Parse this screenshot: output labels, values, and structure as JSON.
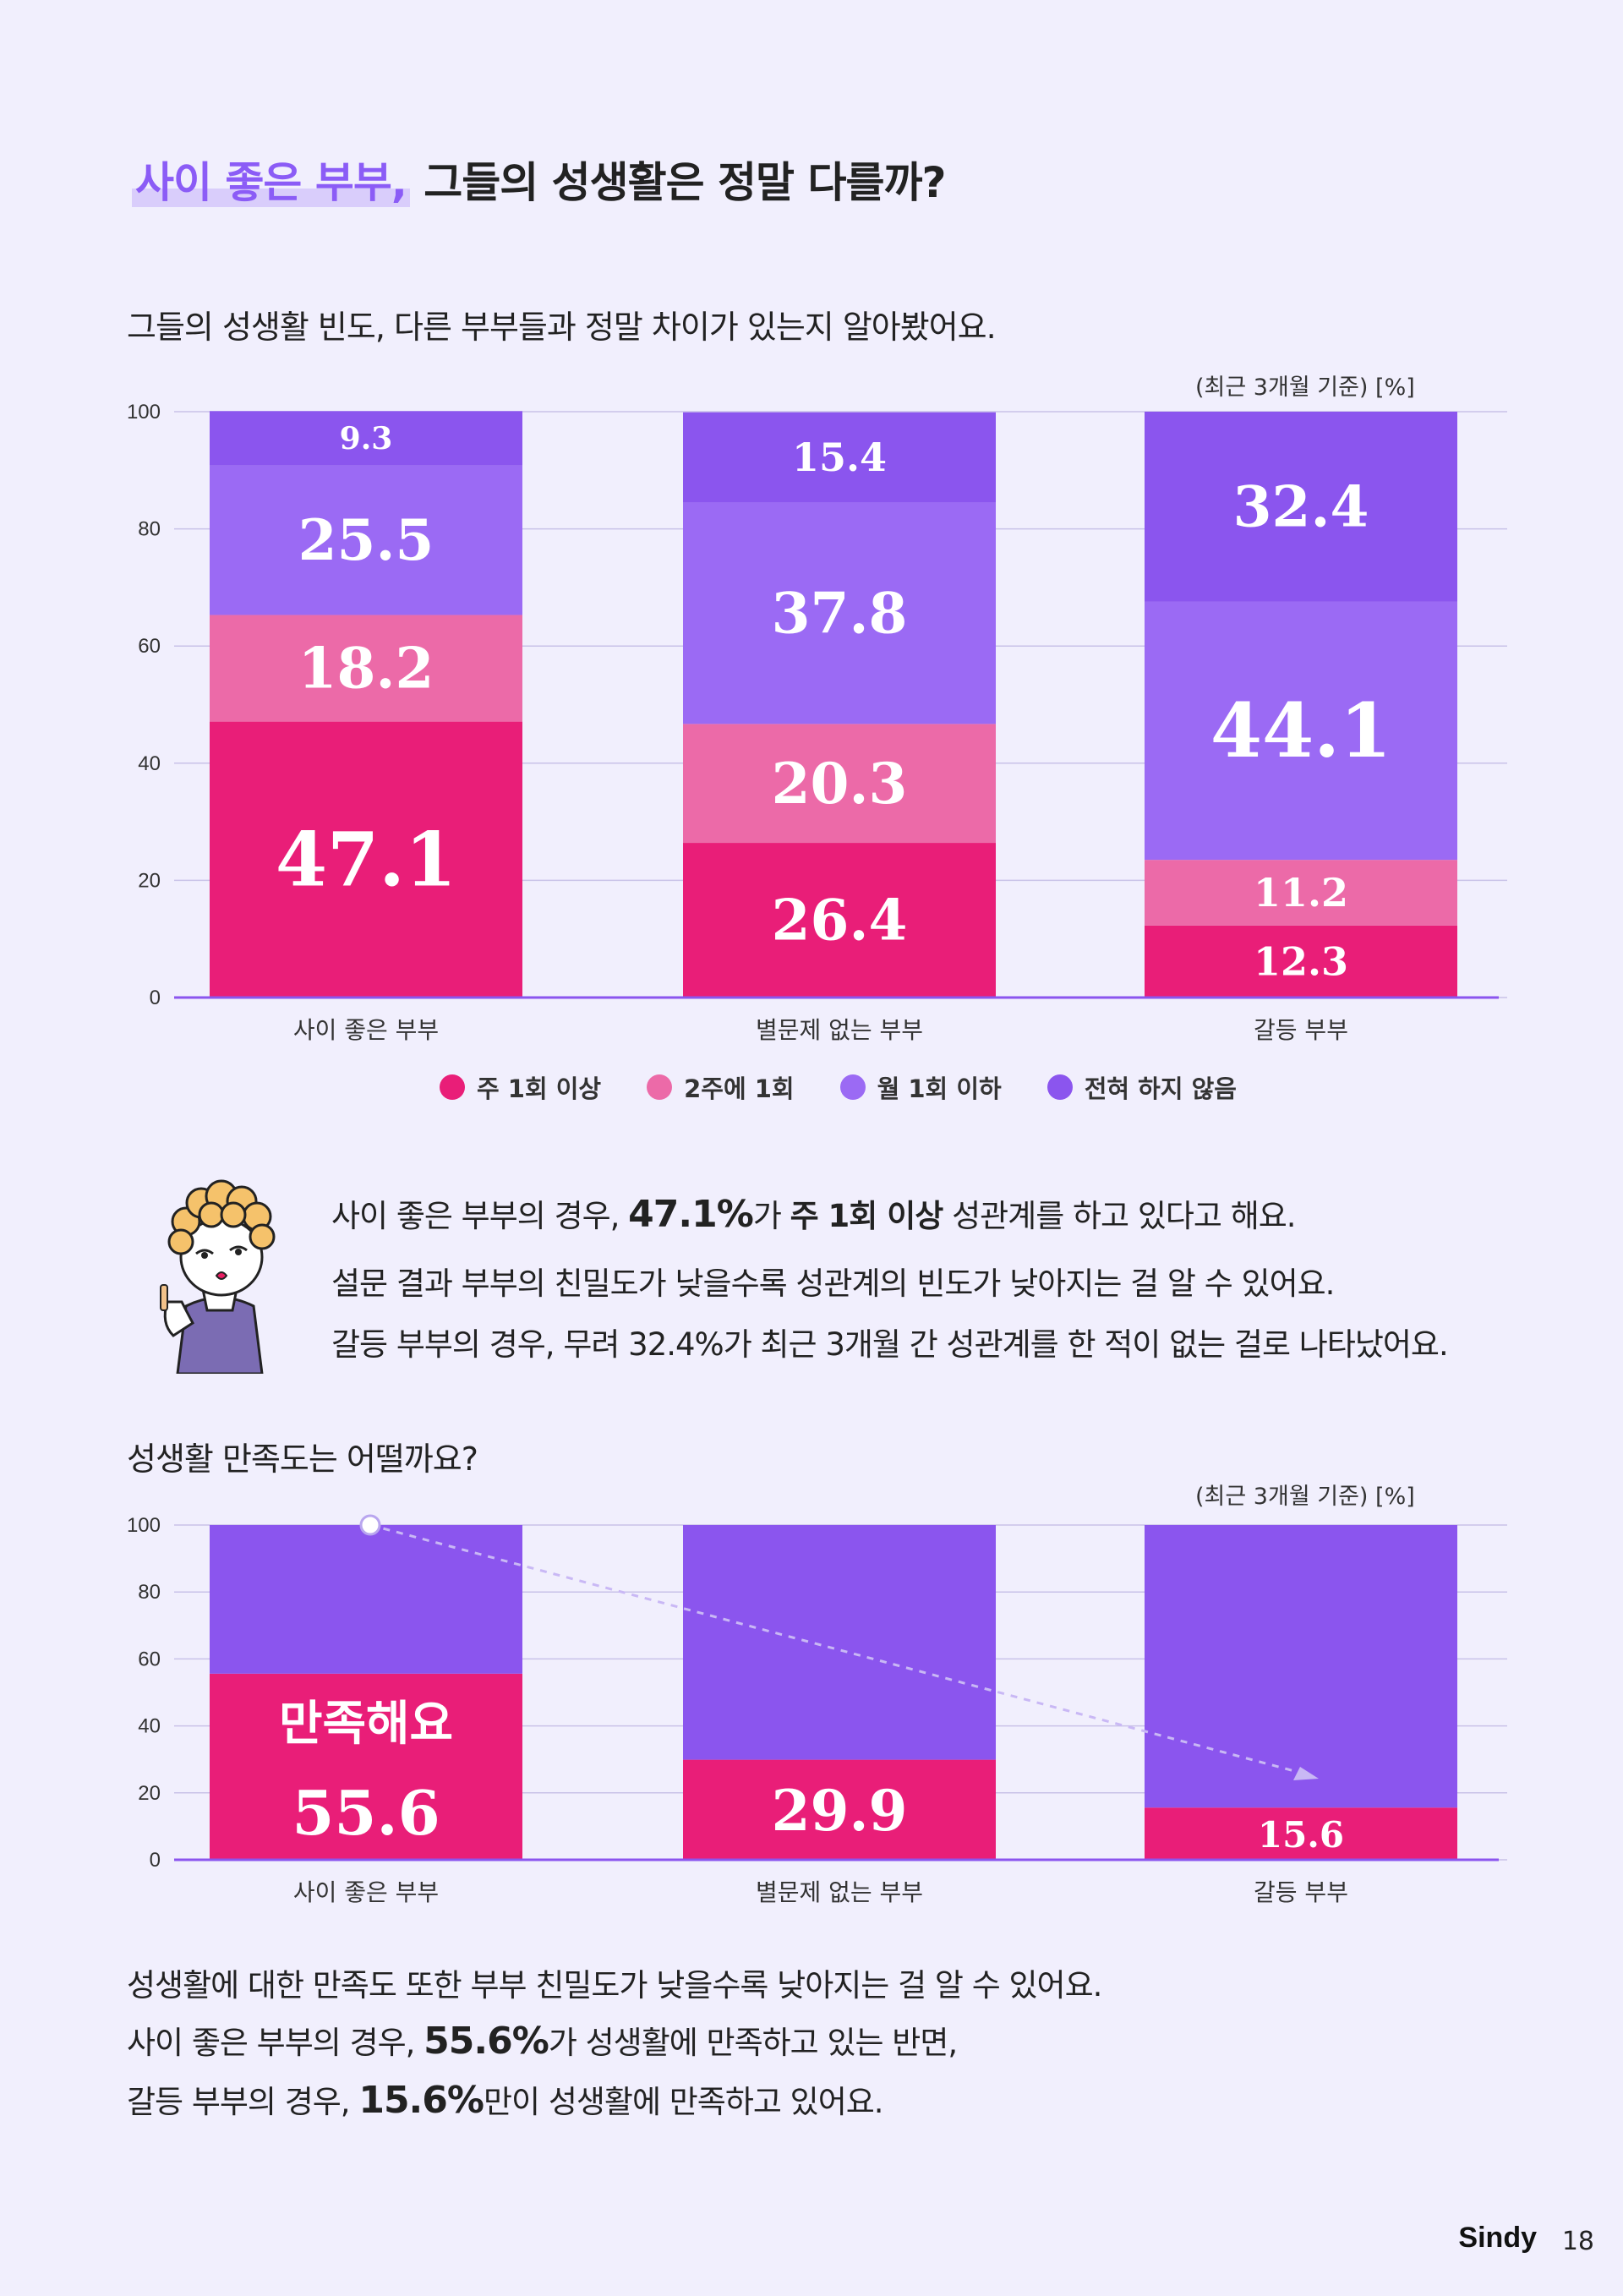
{
  "header": {
    "title_highlight": "사이 좋은 부부,",
    "title_rest": " 그들의 성생활은 정말 다를까?",
    "subtitle": "그들의 성생활 빈도, 다른 부부들과 정말 차이가 있는지 알아봤어요."
  },
  "chart_note": "(최근 3개월 기준)  [%]",
  "legend": [
    {
      "label": "주 1회 이상",
      "color": "#e91e78"
    },
    {
      "label": "2주에 1회",
      "color": "#ec6aa8"
    },
    {
      "label": "월 1회 이하",
      "color": "#9b6af4"
    },
    {
      "label": "전혀 하지 않음",
      "color": "#8b55ee"
    }
  ],
  "chart_data": [
    {
      "type": "bar",
      "stacked": true,
      "categories": [
        "사이 좋은 부부",
        "별문제 없는 부부",
        "갈등 부부"
      ],
      "series": [
        {
          "name": "주 1회 이상",
          "color": "#e91e78",
          "values": [
            47.1,
            26.4,
            12.3
          ]
        },
        {
          "name": "2주에 1회",
          "color": "#ec6aa8",
          "values": [
            18.2,
            20.3,
            11.2
          ]
        },
        {
          "name": "월 1회 이하",
          "color": "#9b6af4",
          "values": [
            25.5,
            37.8,
            44.1
          ]
        },
        {
          "name": "전혀 하지 않음",
          "color": "#8b55ee",
          "values": [
            9.3,
            15.4,
            32.4
          ]
        }
      ],
      "yticks": [
        "0",
        "20",
        "40",
        "60",
        "80",
        "100"
      ],
      "ylim": [
        0,
        100
      ],
      "grid": true,
      "legend": "bottom"
    },
    {
      "type": "bar",
      "stacked": true,
      "categories": [
        "사이 좋은 부부",
        "별문제 없는 부부",
        "갈등 부부"
      ],
      "series": [
        {
          "name": "만족해요",
          "color": "#e91e78",
          "values": [
            55.6,
            29.9,
            15.6
          ]
        },
        {
          "color": "#8b55ee",
          "values": [
            44.4,
            70.1,
            84.4
          ]
        }
      ],
      "yticks": [
        "0",
        "20",
        "40",
        "60",
        "80",
        "100"
      ],
      "ylim": [
        0,
        100
      ],
      "grid": true,
      "annotation": "만족해요"
    }
  ],
  "description": {
    "line1_a": "사이 좋은 부부의 경우, ",
    "line1_b": "47.1%",
    "line1_c": "가 ",
    "line1_d": "주 1회 이상",
    "line1_e": " 성관계를 하고 있다고 해요.",
    "line2": "설문 결과 부부의 친밀도가 낮을수록 성관계의 빈도가 낮아지는 걸 알 수 있어요.",
    "line3": "갈등 부부의 경우, 무려 32.4%가 최근 3개월 간 성관계를 한 적이 없는 걸로 나타났어요."
  },
  "section2_title": "성생활 만족도는 어떨까요?",
  "bottom_text": {
    "line1": "성생활에 대한 만족도 또한 부부 친밀도가 낮을수록 낮아지는 걸 알 수 있어요.",
    "line2_a": "사이 좋은 부부의 경우, ",
    "line2_b": "55.6%",
    "line2_c": "가 성생활에 만족하고 있는 반면,",
    "line3_a": "갈등 부부의 경우, ",
    "line3_b": "15.6%",
    "line3_c": "만이 성생활에 만족하고 있어요."
  },
  "footer": {
    "brand": "Sindy",
    "page": "18"
  }
}
